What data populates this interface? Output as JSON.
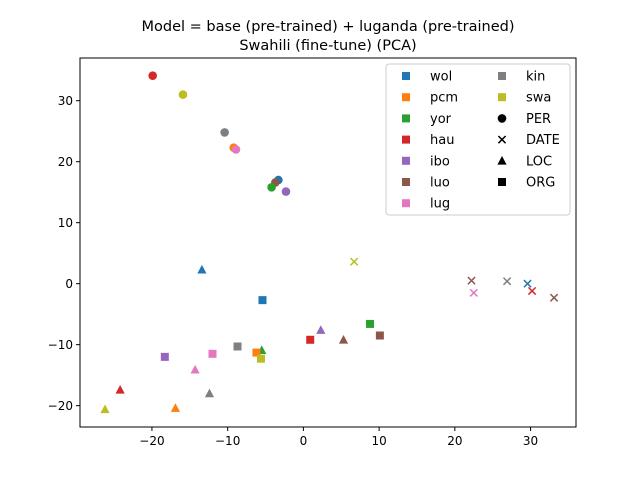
{
  "chart_data": {
    "type": "scatter",
    "title_line1": "Model = base (pre-trained) + luganda (pre-trained)",
    "title_line2": "Swahili (fine-tune) (PCA)",
    "xlabel": "",
    "ylabel": "",
    "xlim": [
      -29.5,
      36.0
    ],
    "ylim": [
      -23.5,
      37.0
    ],
    "x_ticks": [
      -20,
      -10,
      0,
      10,
      20,
      30
    ],
    "y_ticks": [
      -20,
      -10,
      0,
      10,
      20,
      30
    ],
    "grid": false,
    "legend_position": "top-right",
    "languages": [
      {
        "name": "wol",
        "color": "#1f77b4"
      },
      {
        "name": "pcm",
        "color": "#ff7f0e"
      },
      {
        "name": "yor",
        "color": "#2ca02c"
      },
      {
        "name": "hau",
        "color": "#d62728"
      },
      {
        "name": "ibo",
        "color": "#9467bd"
      },
      {
        "name": "luo",
        "color": "#8c564b"
      },
      {
        "name": "lug",
        "color": "#e377c2"
      },
      {
        "name": "kin",
        "color": "#7f7f7f"
      },
      {
        "name": "swa",
        "color": "#bcbd22"
      }
    ],
    "entity_types": [
      {
        "name": "PER",
        "marker": "circle"
      },
      {
        "name": "DATE",
        "marker": "x"
      },
      {
        "name": "LOC",
        "marker": "triangle"
      },
      {
        "name": "ORG",
        "marker": "square"
      }
    ],
    "points": [
      {
        "lang": "hau",
        "entity": "PER",
        "x": -19.9,
        "y": 34.1
      },
      {
        "lang": "swa",
        "entity": "PER",
        "x": -15.9,
        "y": 31.0
      },
      {
        "lang": "kin",
        "entity": "PER",
        "x": -10.4,
        "y": 24.8
      },
      {
        "lang": "pcm",
        "entity": "PER",
        "x": -9.2,
        "y": 22.3
      },
      {
        "lang": "lug",
        "entity": "PER",
        "x": -8.9,
        "y": 22.0
      },
      {
        "lang": "wol",
        "entity": "PER",
        "x": -3.3,
        "y": 17.0
      },
      {
        "lang": "luo",
        "entity": "PER",
        "x": -3.7,
        "y": 16.6
      },
      {
        "lang": "yor",
        "entity": "PER",
        "x": -4.2,
        "y": 15.8
      },
      {
        "lang": "ibo",
        "entity": "PER",
        "x": -2.3,
        "y": 15.1
      },
      {
        "lang": "swa",
        "entity": "DATE",
        "x": 6.7,
        "y": 3.6
      },
      {
        "lang": "luo",
        "entity": "DATE",
        "x": 22.2,
        "y": 0.5
      },
      {
        "lang": "lug",
        "entity": "DATE",
        "x": 22.5,
        "y": -1.5
      },
      {
        "lang": "kin",
        "entity": "DATE",
        "x": 26.9,
        "y": 0.4
      },
      {
        "lang": "wol",
        "entity": "DATE",
        "x": 29.6,
        "y": 0.0
      },
      {
        "lang": "hau",
        "entity": "DATE",
        "x": 30.2,
        "y": -1.2
      },
      {
        "lang": "luo",
        "entity": "DATE",
        "x": 33.1,
        "y": -2.3
      },
      {
        "lang": "wol",
        "entity": "LOC",
        "x": -13.4,
        "y": 2.3
      },
      {
        "lang": "ibo",
        "entity": "LOC",
        "x": 2.3,
        "y": -7.6
      },
      {
        "lang": "luo",
        "entity": "LOC",
        "x": 5.3,
        "y": -9.2
      },
      {
        "lang": "yor",
        "entity": "LOC",
        "x": -5.5,
        "y": -10.9
      },
      {
        "lang": "lug",
        "entity": "LOC",
        "x": -14.3,
        "y": -14.1
      },
      {
        "lang": "kin",
        "entity": "LOC",
        "x": -12.4,
        "y": -18.0
      },
      {
        "lang": "hau",
        "entity": "LOC",
        "x": -24.2,
        "y": -17.4
      },
      {
        "lang": "swa",
        "entity": "LOC",
        "x": -26.2,
        "y": -20.6
      },
      {
        "lang": "pcm",
        "entity": "LOC",
        "x": -16.9,
        "y": -20.4
      },
      {
        "lang": "wol",
        "entity": "ORG",
        "x": -5.4,
        "y": -2.7
      },
      {
        "lang": "yor",
        "entity": "ORG",
        "x": 8.8,
        "y": -6.6
      },
      {
        "lang": "luo",
        "entity": "ORG",
        "x": 10.1,
        "y": -8.5
      },
      {
        "lang": "hau",
        "entity": "ORG",
        "x": 0.9,
        "y": -9.2
      },
      {
        "lang": "kin",
        "entity": "ORG",
        "x": -8.7,
        "y": -10.3
      },
      {
        "lang": "pcm",
        "entity": "ORG",
        "x": -6.2,
        "y": -11.3
      },
      {
        "lang": "swa",
        "entity": "ORG",
        "x": -5.6,
        "y": -12.3
      },
      {
        "lang": "lug",
        "entity": "ORG",
        "x": -12.0,
        "y": -11.5
      },
      {
        "lang": "ibo",
        "entity": "ORG",
        "x": -18.3,
        "y": -12.0
      }
    ]
  }
}
